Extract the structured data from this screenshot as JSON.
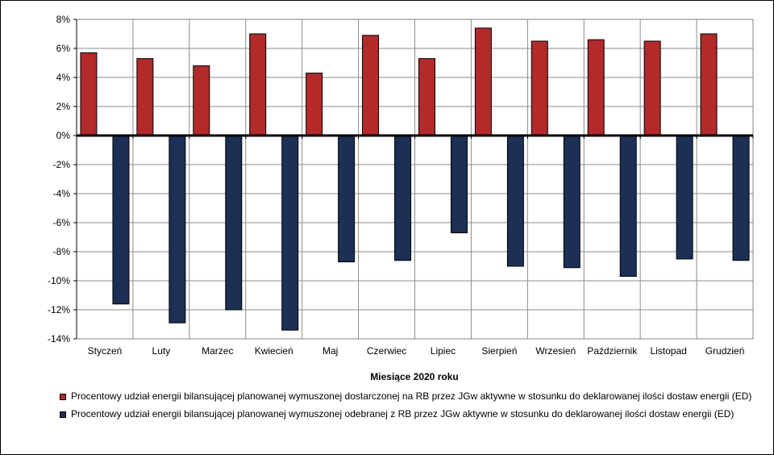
{
  "chart_data": {
    "type": "bar",
    "categories": [
      "Styczeń",
      "Luty",
      "Marzec",
      "Kwiecień",
      "Maj",
      "Czerwiec",
      "Lipiec",
      "Sierpień",
      "Wrzesień",
      "Październik",
      "Listopad",
      "Grudzień"
    ],
    "series": [
      {
        "name": "Procentowy udział energii bilansującej planowanej wymuszonej dostarczonej na RB przez JGw aktywne w stosunku do deklarowanej ilości dostaw energii (ED)",
        "color": "#b22a2a",
        "values": [
          5.7,
          5.3,
          4.8,
          7.0,
          4.3,
          6.9,
          5.3,
          7.4,
          6.5,
          6.6,
          6.5,
          7.0
        ]
      },
      {
        "name": "Procentowy udział energii bilansującej planowanej wymuszonej odebranej z RB przez JGw aktywne w stosunku do deklarowanej ilości dostaw energii (ED)",
        "color": "#1c2f55",
        "values": [
          -11.6,
          -12.9,
          -12.0,
          -13.4,
          -8.7,
          -8.6,
          -6.7,
          -9.0,
          -9.1,
          -9.7,
          -8.5,
          -8.6
        ]
      }
    ],
    "yticks": [
      "8%",
      "6%",
      "4%",
      "2%",
      "0%",
      "-2%",
      "-4%",
      "-6%",
      "-8%",
      "-10%",
      "-12%",
      "-14%"
    ],
    "ylim": [
      -14,
      8
    ],
    "ytick_step": 2,
    "xlabel": "Miesiące 2020  roku",
    "ylabel": "",
    "title": "",
    "grid": true,
    "legend_position": "bottom"
  }
}
